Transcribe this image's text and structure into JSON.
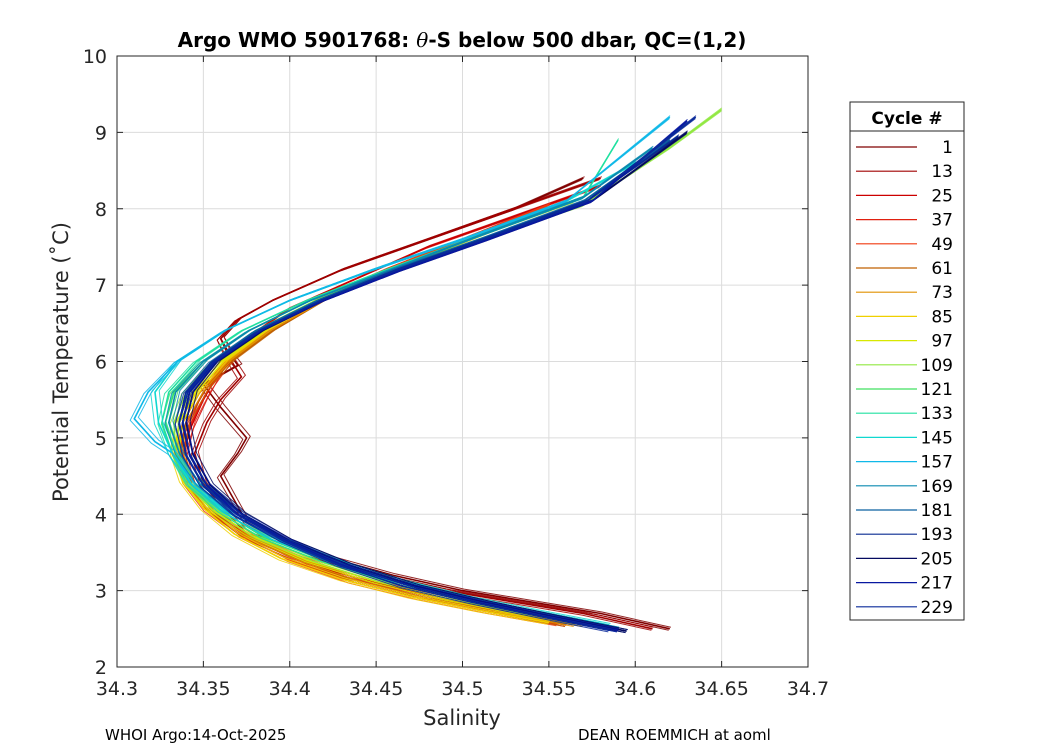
{
  "chart_data": {
    "type": "line",
    "title_prefix": "Argo WMO 5901768: ",
    "title_symbol": "θ",
    "title_suffix": "-S below 500 dbar,  QC=(1,2)",
    "xlabel": "Salinity",
    "ylabel": "Potential Temperature (˚C)",
    "xlim": [
      34.3,
      34.7
    ],
    "ylim": [
      2,
      10
    ],
    "xticks": [
      "34.3",
      "34.35",
      "34.4",
      "34.45",
      "34.5",
      "34.55",
      "34.6",
      "34.65",
      "34.7"
    ],
    "yticks": [
      "2",
      "3",
      "4",
      "5",
      "6",
      "7",
      "8",
      "9",
      "10"
    ],
    "grid": true,
    "legend_title": "Cycle #",
    "legend_position": "outside-right",
    "legend": [
      {
        "label": "1",
        "color": "#800000"
      },
      {
        "label": "13",
        "color": "#a00000"
      },
      {
        "label": "25",
        "color": "#cc0000"
      },
      {
        "label": "37",
        "color": "#e02010"
      },
      {
        "label": "49",
        "color": "#f03a10"
      },
      {
        "label": "61",
        "color": "#c06000"
      },
      {
        "label": "73",
        "color": "#e09000"
      },
      {
        "label": "85",
        "color": "#f0d000"
      },
      {
        "label": "97",
        "color": "#d8e800"
      },
      {
        "label": "109",
        "color": "#90e840"
      },
      {
        "label": "121",
        "color": "#40e060"
      },
      {
        "label": "133",
        "color": "#20e0a0"
      },
      {
        "label": "145",
        "color": "#10d8d0"
      },
      {
        "label": "157",
        "color": "#10b8e8"
      },
      {
        "label": "169",
        "color": "#0a8ab0"
      },
      {
        "label": "181",
        "color": "#0a60a0"
      },
      {
        "label": "193",
        "color": "#082a90"
      },
      {
        "label": "205",
        "color": "#050a60"
      },
      {
        "label": "217",
        "color": "#0818a0"
      },
      {
        "label": "229",
        "color": "#0a2a9a"
      }
    ],
    "series": [
      {
        "name": "cycle 1",
        "color": "#800000",
        "x": [
          34.62,
          34.58,
          34.54,
          34.5,
          34.46,
          34.42,
          34.39,
          34.375,
          34.37,
          34.36,
          34.37,
          34.375,
          34.36,
          34.35,
          34.37,
          34.365,
          34.36,
          34.37,
          34.39,
          34.43,
          34.48,
          34.53,
          34.57
        ],
        "y": [
          2.5,
          2.7,
          2.85,
          3.0,
          3.2,
          3.45,
          3.7,
          3.9,
          4.1,
          4.5,
          4.8,
          5.0,
          5.4,
          5.7,
          5.95,
          6.1,
          6.3,
          6.55,
          6.8,
          7.2,
          7.6,
          8.0,
          8.4
        ]
      },
      {
        "name": "cycle 13",
        "color": "#a00000",
        "x": [
          34.61,
          34.57,
          34.53,
          34.49,
          34.45,
          34.41,
          34.375,
          34.36,
          34.35,
          34.345,
          34.352,
          34.36,
          34.372,
          34.365,
          34.36,
          34.37,
          34.39,
          34.43,
          34.48,
          34.53,
          34.58
        ],
        "y": [
          2.5,
          2.7,
          2.85,
          3.0,
          3.2,
          3.45,
          3.75,
          4.1,
          4.4,
          4.8,
          5.2,
          5.5,
          5.8,
          6.05,
          6.3,
          6.55,
          6.8,
          7.2,
          7.6,
          8.0,
          8.4
        ]
      },
      {
        "name": "cycle 25",
        "color": "#cc0000",
        "x": [
          34.57,
          34.53,
          34.49,
          34.45,
          34.41,
          34.38,
          34.36,
          34.345,
          34.338,
          34.342,
          34.35,
          34.36,
          34.375,
          34.4,
          34.44,
          34.48,
          34.53,
          34.58
        ],
        "y": [
          2.55,
          2.7,
          2.9,
          3.1,
          3.35,
          3.65,
          3.95,
          4.3,
          4.7,
          5.1,
          5.5,
          5.9,
          6.3,
          6.7,
          7.1,
          7.5,
          7.9,
          8.3
        ]
      },
      {
        "name": "cycle 37",
        "color": "#e02010",
        "x": [
          34.56,
          34.52,
          34.48,
          34.44,
          34.405,
          34.375,
          34.355,
          34.343,
          34.338,
          34.343,
          34.352,
          34.365,
          34.385,
          34.415,
          34.455,
          34.5,
          34.55
        ],
        "y": [
          2.55,
          2.72,
          2.9,
          3.12,
          3.4,
          3.7,
          4.05,
          4.4,
          4.8,
          5.2,
          5.6,
          6.0,
          6.4,
          6.8,
          7.2,
          7.6,
          8.05
        ]
      },
      {
        "name": "cycle 49",
        "color": "#f03a10",
        "x": [
          34.555,
          34.515,
          34.475,
          34.435,
          34.4,
          34.372,
          34.352,
          34.34,
          34.336,
          34.34,
          34.35,
          34.364,
          34.385,
          34.415,
          34.455,
          34.5,
          34.55
        ],
        "y": [
          2.56,
          2.72,
          2.9,
          3.12,
          3.4,
          3.72,
          4.06,
          4.42,
          4.8,
          5.2,
          5.6,
          6.0,
          6.4,
          6.8,
          7.2,
          7.6,
          8.05
        ]
      },
      {
        "name": "cycle 61",
        "color": "#c06000",
        "x": [
          34.56,
          34.52,
          34.48,
          34.44,
          34.405,
          34.375,
          34.355,
          34.342,
          34.337,
          34.34,
          34.35,
          34.366,
          34.39,
          34.42,
          34.46,
          34.51,
          34.56
        ],
        "y": [
          2.55,
          2.72,
          2.9,
          3.12,
          3.4,
          3.7,
          4.05,
          4.4,
          4.8,
          5.2,
          5.6,
          6.0,
          6.4,
          6.8,
          7.2,
          7.65,
          8.1
        ]
      },
      {
        "name": "cycle 73",
        "color": "#e09000",
        "x": [
          34.565,
          34.525,
          34.485,
          34.445,
          34.408,
          34.378,
          34.356,
          34.342,
          34.336,
          34.338,
          34.348,
          34.364,
          34.388,
          34.42,
          34.46,
          34.505,
          34.555
        ],
        "y": [
          2.55,
          2.72,
          2.9,
          3.12,
          3.4,
          3.7,
          4.05,
          4.4,
          4.8,
          5.2,
          5.6,
          6.0,
          6.4,
          6.8,
          7.2,
          7.6,
          8.05
        ]
      },
      {
        "name": "cycle 85",
        "color": "#f0d000",
        "x": [
          34.55,
          34.51,
          34.47,
          34.43,
          34.395,
          34.368,
          34.35,
          34.338,
          34.333,
          34.336,
          34.346,
          34.362,
          34.386,
          34.418,
          34.458,
          34.505,
          34.555
        ],
        "y": [
          2.58,
          2.74,
          2.92,
          3.15,
          3.42,
          3.74,
          4.08,
          4.44,
          4.8,
          5.2,
          5.6,
          6.0,
          6.4,
          6.8,
          7.2,
          7.6,
          8.05
        ]
      },
      {
        "name": "cycle 97",
        "color": "#d8e800",
        "x": [
          34.57,
          34.53,
          34.49,
          34.45,
          34.41,
          34.378,
          34.355,
          34.34,
          34.334,
          34.336,
          34.345,
          34.36,
          34.385,
          34.418,
          34.46,
          34.51,
          34.565
        ],
        "y": [
          2.55,
          2.72,
          2.9,
          3.12,
          3.4,
          3.72,
          4.06,
          4.42,
          4.8,
          5.2,
          5.6,
          6.0,
          6.4,
          6.8,
          7.2,
          7.65,
          8.1
        ]
      },
      {
        "name": "cycle 109",
        "color": "#90e840",
        "x": [
          34.575,
          34.535,
          34.495,
          34.455,
          34.415,
          34.382,
          34.358,
          34.342,
          34.334,
          34.333,
          34.34,
          34.356,
          34.38,
          34.415,
          34.46,
          34.51,
          34.57,
          34.62,
          34.65
        ],
        "y": [
          2.55,
          2.72,
          2.9,
          3.12,
          3.4,
          3.7,
          4.05,
          4.4,
          4.8,
          5.2,
          5.6,
          6.0,
          6.4,
          6.8,
          7.2,
          7.6,
          8.05,
          8.8,
          9.3
        ]
      },
      {
        "name": "cycle 121",
        "color": "#40e060",
        "x": [
          34.58,
          34.54,
          34.5,
          34.46,
          34.42,
          34.385,
          34.36,
          34.343,
          34.334,
          34.328,
          34.333,
          34.35,
          34.376,
          34.412,
          34.458,
          34.51,
          34.57
        ],
        "y": [
          2.55,
          2.72,
          2.9,
          3.12,
          3.4,
          3.7,
          4.05,
          4.4,
          4.8,
          5.2,
          5.6,
          6.0,
          6.4,
          6.8,
          7.2,
          7.65,
          8.15
        ]
      },
      {
        "name": "cycle 133",
        "color": "#20e0a0",
        "x": [
          34.58,
          34.54,
          34.5,
          34.46,
          34.42,
          34.386,
          34.36,
          34.342,
          34.332,
          34.326,
          34.33,
          34.346,
          34.372,
          34.41,
          34.456,
          34.51,
          34.57,
          34.59
        ],
        "y": [
          2.55,
          2.72,
          2.9,
          3.12,
          3.4,
          3.7,
          4.05,
          4.4,
          4.8,
          5.2,
          5.6,
          6.0,
          6.4,
          6.8,
          7.2,
          7.65,
          8.15,
          8.9
        ]
      },
      {
        "name": "cycle 145",
        "color": "#10d8d0",
        "x": [
          34.585,
          34.545,
          34.505,
          34.465,
          34.425,
          34.39,
          34.362,
          34.343,
          34.332,
          34.324,
          34.322,
          34.335,
          34.362,
          34.4,
          34.448,
          34.5,
          34.56,
          34.6
        ],
        "y": [
          2.55,
          2.72,
          2.9,
          3.12,
          3.4,
          3.7,
          4.05,
          4.4,
          4.8,
          5.2,
          5.6,
          6.0,
          6.4,
          6.8,
          7.2,
          7.6,
          8.1,
          8.6
        ]
      },
      {
        "name": "cycle 157",
        "color": "#10b8e8",
        "x": [
          34.59,
          34.55,
          34.51,
          34.47,
          34.43,
          34.392,
          34.365,
          34.345,
          34.332,
          34.322,
          34.31,
          34.318,
          34.335,
          34.362,
          34.4,
          34.448,
          34.5,
          34.56,
          34.62
        ],
        "y": [
          2.5,
          2.68,
          2.86,
          3.08,
          3.36,
          3.68,
          4.02,
          4.4,
          4.8,
          4.95,
          5.25,
          5.6,
          6.0,
          6.4,
          6.8,
          7.2,
          7.6,
          8.1,
          9.2
        ]
      },
      {
        "name": "cycle 169",
        "color": "#0a8ab0",
        "x": [
          34.59,
          34.55,
          34.51,
          34.47,
          34.43,
          34.395,
          34.368,
          34.348,
          34.336,
          34.33,
          34.334,
          34.35,
          34.376,
          34.412,
          34.458,
          34.51,
          34.57,
          34.61
        ],
        "y": [
          2.5,
          2.68,
          2.86,
          3.08,
          3.36,
          3.68,
          4.02,
          4.4,
          4.8,
          5.2,
          5.6,
          6.0,
          6.4,
          6.8,
          7.2,
          7.65,
          8.15,
          8.8
        ]
      },
      {
        "name": "cycle 181",
        "color": "#0a60a0",
        "x": [
          34.59,
          34.55,
          34.51,
          34.47,
          34.43,
          34.396,
          34.37,
          34.35,
          34.34,
          34.336,
          34.34,
          34.355,
          34.38,
          34.416,
          34.46,
          34.51,
          34.57,
          34.62
        ],
        "y": [
          2.48,
          2.66,
          2.85,
          3.06,
          3.34,
          3.66,
          4.0,
          4.38,
          4.78,
          5.2,
          5.6,
          6.0,
          6.4,
          6.8,
          7.2,
          7.6,
          8.1,
          8.9
        ]
      },
      {
        "name": "cycle 193",
        "color": "#082a90",
        "x": [
          34.595,
          34.555,
          34.515,
          34.475,
          34.435,
          34.4,
          34.372,
          34.352,
          34.342,
          34.338,
          34.342,
          34.356,
          34.382,
          34.418,
          34.462,
          34.512,
          34.572,
          34.625
        ],
        "y": [
          2.47,
          2.65,
          2.84,
          3.05,
          3.33,
          3.65,
          4.0,
          4.38,
          4.78,
          5.2,
          5.6,
          6.0,
          6.4,
          6.8,
          7.2,
          7.6,
          8.1,
          8.95
        ]
      },
      {
        "name": "cycle 205",
        "color": "#050a60",
        "x": [
          34.595,
          34.555,
          34.515,
          34.475,
          34.435,
          34.4,
          34.373,
          34.354,
          34.344,
          34.34,
          34.344,
          34.358,
          34.384,
          34.42,
          34.465,
          34.515,
          34.575,
          34.63
        ],
        "y": [
          2.47,
          2.65,
          2.84,
          3.05,
          3.33,
          3.65,
          4.0,
          4.38,
          4.78,
          5.2,
          5.6,
          6.0,
          6.4,
          6.8,
          7.2,
          7.6,
          8.1,
          9.0
        ]
      },
      {
        "name": "cycle 217",
        "color": "#0818a0",
        "x": [
          34.59,
          34.55,
          34.51,
          34.47,
          34.43,
          34.398,
          34.37,
          34.352,
          34.342,
          34.338,
          34.342,
          34.357,
          34.383,
          34.42,
          34.465,
          34.515,
          34.575,
          34.63
        ],
        "y": [
          2.48,
          2.66,
          2.85,
          3.06,
          3.34,
          3.66,
          4.0,
          4.38,
          4.78,
          5.2,
          5.6,
          6.0,
          6.4,
          6.8,
          7.2,
          7.6,
          8.1,
          9.15
        ]
      },
      {
        "name": "cycle 229",
        "color": "#0a2a9a",
        "x": [
          34.585,
          34.545,
          34.505,
          34.465,
          34.428,
          34.396,
          34.369,
          34.35,
          34.34,
          34.336,
          34.341,
          34.356,
          34.382,
          34.418,
          34.462,
          34.512,
          34.572,
          34.635
        ],
        "y": [
          2.48,
          2.66,
          2.85,
          3.06,
          3.34,
          3.66,
          4.0,
          4.38,
          4.78,
          5.2,
          5.6,
          6.0,
          6.4,
          6.8,
          7.2,
          7.6,
          8.1,
          9.2
        ]
      }
    ]
  },
  "footer": {
    "left": "WHOI Argo:14-Oct-2025",
    "right": "DEAN ROEMMICH at aoml"
  }
}
